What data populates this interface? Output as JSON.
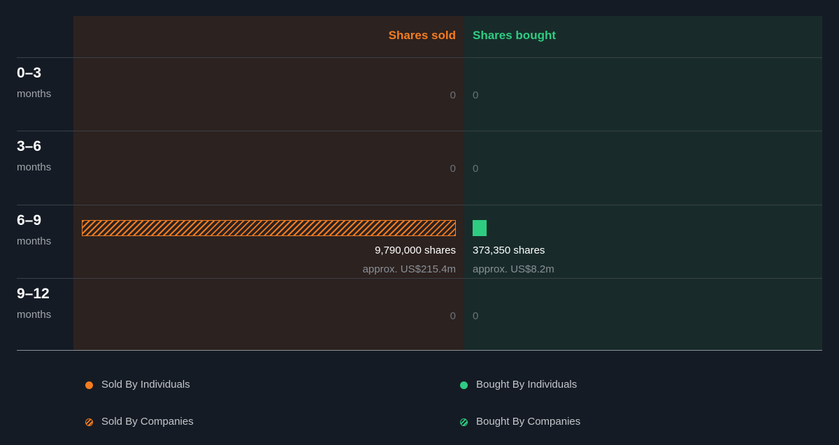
{
  "chart_data": {
    "type": "bar",
    "categories": [
      "0–3",
      "3–6",
      "6–9",
      "9–12"
    ],
    "category_unit": "months",
    "columns": [
      {
        "name": "Shares sold",
        "color": "#f47c20",
        "values": [
          0,
          0,
          9790000,
          0
        ],
        "labels": [
          "0",
          "0",
          "9,790,000 shares",
          "0"
        ],
        "approx": [
          "",
          "",
          "approx. US$215.4m",
          ""
        ],
        "style": [
          "",
          "",
          "hatched",
          ""
        ]
      },
      {
        "name": "Shares bought",
        "color": "#2ecc81",
        "values": [
          0,
          0,
          373350,
          0
        ],
        "labels": [
          "0",
          "0",
          "373,350 shares",
          "0"
        ],
        "approx": [
          "",
          "",
          "approx. US$8.2m",
          ""
        ],
        "style": [
          "",
          "",
          "solid",
          ""
        ]
      }
    ],
    "legend": [
      {
        "label": "Sold By Individuals",
        "color": "#f47c20",
        "style": "solid"
      },
      {
        "label": "Bought By Individuals",
        "color": "#2ecc81",
        "style": "solid"
      },
      {
        "label": "Sold By Companies",
        "color": "#f47c20",
        "style": "hatched"
      },
      {
        "label": "Bought By Companies",
        "color": "#2ecc81",
        "style": "hatched"
      }
    ],
    "grid": true,
    "legend_placement": "bottom"
  }
}
